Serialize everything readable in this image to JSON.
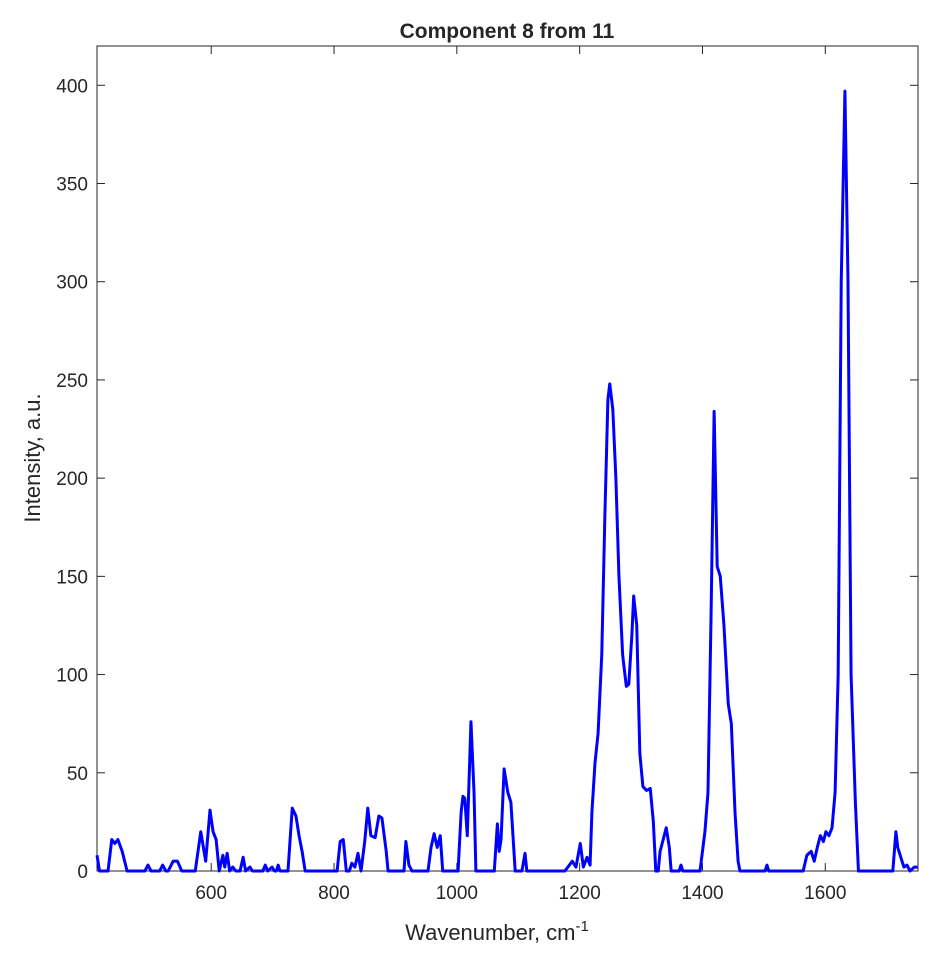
{
  "chart_data": {
    "type": "line",
    "title": "Component 8 from 11",
    "xlabel": "Wavenumber, cm",
    "xlabel_superscript": "-1",
    "ylabel": "Intensity, a.u.",
    "xlim": [
      414,
      1751
    ],
    "ylim": [
      0,
      420
    ],
    "xticks": [
      600,
      800,
      1000,
      1200,
      1400,
      1600
    ],
    "yticks": [
      0,
      50,
      100,
      150,
      200,
      250,
      300,
      350,
      400
    ],
    "grid": false,
    "series": [
      {
        "color": "#0000ff",
        "x": [
          414,
          418,
          432,
          438,
          443,
          448,
          455,
          463,
          492,
          497,
          502,
          516,
          521,
          526,
          530,
          538,
          545,
          552,
          574,
          583,
          591,
          598,
          603,
          608,
          613,
          619,
          622,
          626,
          630,
          635,
          640,
          647,
          652,
          656,
          663,
          667,
          684,
          688,
          692,
          699,
          703,
          706,
          709,
          712,
          725,
          732,
          738,
          743,
          748,
          753,
          805,
          810,
          815,
          820,
          825,
          829,
          834,
          839,
          844,
          850,
          855,
          860,
          867,
          873,
          878,
          885,
          888,
          914,
          917,
          922,
          927,
          953,
          958,
          963,
          968,
          973,
          977,
          1002,
          1007,
          1010,
          1013,
          1017,
          1023,
          1028,
          1031,
          1061,
          1066,
          1069,
          1072,
          1077,
          1083,
          1088,
          1095,
          1106,
          1111,
          1114,
          1176,
          1188,
          1194,
          1201,
          1206,
          1212,
          1217,
          1220,
          1225,
          1230,
          1236,
          1241,
          1246,
          1249,
          1254,
          1259,
          1264,
          1270,
          1276,
          1280,
          1285,
          1288,
          1293,
          1298,
          1303,
          1309,
          1315,
          1320,
          1324,
          1328,
          1331,
          1336,
          1341,
          1346,
          1349,
          1362,
          1365,
          1368,
          1396,
          1404,
          1409,
          1414,
          1419,
          1424,
          1429,
          1435,
          1442,
          1447,
          1453,
          1458,
          1461,
          1502,
          1505,
          1508,
          1564,
          1570,
          1577,
          1582,
          1587,
          1592,
          1597,
          1601,
          1606,
          1611,
          1616,
          1621,
          1626,
          1632,
          1637,
          1642,
          1649,
          1654,
          1710,
          1715,
          1718,
          1725,
          1728,
          1733,
          1738,
          1745,
          1750
        ],
        "values": [
          8,
          0,
          0,
          16,
          14,
          16,
          10,
          0,
          0,
          3,
          0,
          0,
          3,
          0,
          0,
          5,
          5,
          0,
          0,
          20,
          5,
          31,
          20,
          16,
          0,
          8,
          2,
          9,
          0,
          2,
          0,
          0,
          7,
          0,
          2,
          0,
          0,
          3,
          0,
          2,
          0,
          0,
          3,
          0,
          0,
          32,
          28,
          18,
          10,
          0,
          0,
          15,
          16,
          0,
          0,
          4,
          2,
          9,
          0,
          15,
          32,
          18,
          17,
          28,
          27,
          10,
          0,
          0,
          15,
          3,
          0,
          0,
          12,
          19,
          12,
          18,
          0,
          0,
          30,
          38,
          37,
          18,
          76,
          40,
          0,
          0,
          24,
          10,
          16,
          52,
          40,
          35,
          0,
          0,
          9,
          0,
          0,
          5,
          2,
          14,
          2,
          7,
          3,
          30,
          55,
          70,
          110,
          180,
          240,
          248,
          235,
          200,
          150,
          110,
          94,
          95,
          120,
          140,
          125,
          60,
          43,
          41,
          42,
          25,
          0,
          0,
          10,
          16,
          22,
          12,
          0,
          0,
          3,
          0,
          0,
          20,
          40,
          130,
          234,
          155,
          150,
          125,
          85,
          75,
          30,
          5,
          0,
          0,
          3,
          0,
          0,
          8,
          10,
          5,
          12,
          18,
          15,
          20,
          18,
          22,
          40,
          100,
          300,
          397,
          300,
          100,
          35,
          0,
          0,
          20,
          12,
          5,
          2,
          3,
          0,
          2,
          2
        ]
      }
    ]
  }
}
